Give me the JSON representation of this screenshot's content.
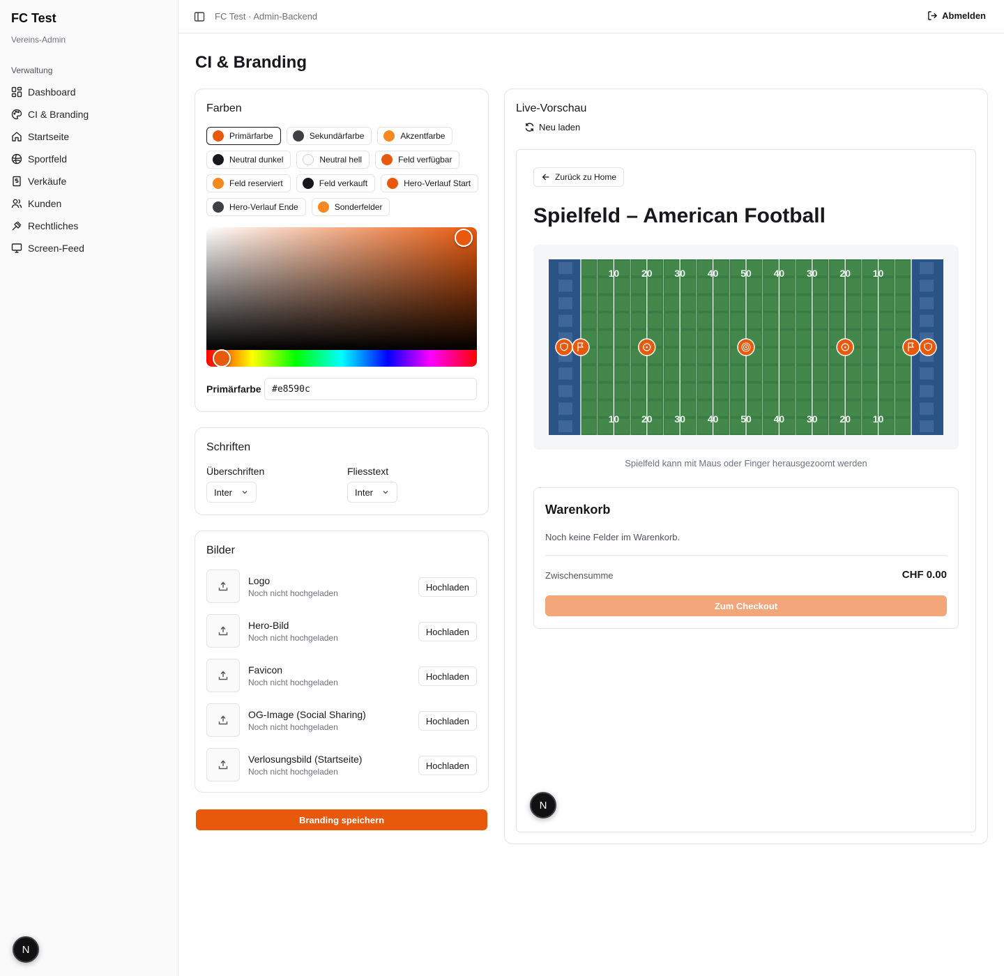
{
  "sidebar": {
    "title": "FC Test",
    "subtitle": "Vereins-Admin",
    "group_label": "Verwaltung",
    "items": [
      {
        "label": "Dashboard",
        "icon": "layout-grid-icon"
      },
      {
        "label": "CI & Branding",
        "icon": "palette-icon"
      },
      {
        "label": "Startseite",
        "icon": "home-icon"
      },
      {
        "label": "Sportfeld",
        "icon": "ball-icon"
      },
      {
        "label": "Verkäufe",
        "icon": "receipt-icon"
      },
      {
        "label": "Kunden",
        "icon": "users-icon"
      },
      {
        "label": "Rechtliches",
        "icon": "gavel-icon"
      },
      {
        "label": "Screen-Feed",
        "icon": "monitor-icon"
      }
    ],
    "badge": "N"
  },
  "topbar": {
    "breadcrumb": "FC Test · Admin-Backend",
    "logout_label": "Abmelden"
  },
  "page": {
    "title": "CI & Branding"
  },
  "colors": {
    "title": "Farben",
    "chips": [
      {
        "label": "Primärfarbe",
        "color": "#e8590c",
        "active": true
      },
      {
        "label": "Sekundärfarbe",
        "color": "#3f3f46"
      },
      {
        "label": "Akzentfarbe",
        "color": "#f7881f"
      },
      {
        "label": "Neutral dunkel",
        "color": "#18181b"
      },
      {
        "label": "Neutral hell",
        "color": "#fafafa"
      },
      {
        "label": "Feld verfügbar",
        "color": "#e8590c"
      },
      {
        "label": "Feld reserviert",
        "color": "#f7881f"
      },
      {
        "label": "Feld verkauft",
        "color": "#18181b"
      },
      {
        "label": "Hero-Verlauf Start",
        "color": "#e8590c"
      },
      {
        "label": "Hero-Verlauf Ende",
        "color": "#3f3f46"
      },
      {
        "label": "Sonderfelder",
        "color": "#f7881f"
      }
    ],
    "hex_label": "Primärfarbe",
    "hex_value": "#e8590c"
  },
  "fonts": {
    "title": "Schriften",
    "headings_label": "Überschriften",
    "headings_value": "Inter",
    "body_label": "Fliesstext",
    "body_value": "Inter"
  },
  "images": {
    "title": "Bilder",
    "upload_label": "Hochladen",
    "items": [
      {
        "title": "Logo",
        "status": "Noch nicht hochgeladen"
      },
      {
        "title": "Hero-Bild",
        "status": "Noch nicht hochgeladen"
      },
      {
        "title": "Favicon",
        "status": "Noch nicht hochgeladen"
      },
      {
        "title": "OG-Image (Social Sharing)",
        "status": "Noch nicht hochgeladen"
      },
      {
        "title": "Verlosungsbild (Startseite)",
        "status": "Noch nicht hochgeladen"
      }
    ]
  },
  "save_label": "Branding speichern",
  "preview": {
    "title": "Live-Vorschau",
    "reload_label": "Neu laden",
    "back_label": "Zurück zu Home",
    "field_title": "Spielfeld – American Football",
    "yard_numbers": [
      "10",
      "20",
      "30",
      "40",
      "50",
      "40",
      "30",
      "20",
      "10"
    ],
    "hint": "Spielfeld kann mit Maus oder Finger herausgezoomt werden",
    "colors": {
      "endzone": "#2a5486",
      "field": "#3a7d44",
      "marker": "#e8590c"
    },
    "cart": {
      "title": "Warenkorb",
      "empty_text": "Noch keine Felder im Warenkorb.",
      "subtotal_label": "Zwischensumme",
      "subtotal_value": "CHF 0.00",
      "checkout_label": "Zum Checkout"
    },
    "badge": "N"
  }
}
